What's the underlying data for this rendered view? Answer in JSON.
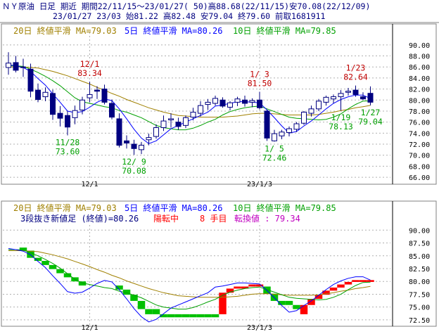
{
  "header": {
    "line1": "ＮＹ原油 日足 期近 期間22/11/15～23/01/27( 50)高88.68(22/11/15)安70.08(22/12/09)",
    "line2": "23/01/27 23/03 始81.22 高82.48 安79.04 終79.60 前取1681911"
  },
  "colors": {
    "up": "#ffffff",
    "down": "#000080",
    "ma20": "#a08000",
    "ma5": "#0000ff",
    "ma10": "#00a000",
    "annotation_high": "#c00000",
    "annotation_low": "#00a000",
    "break_up": "#ff0000",
    "break_down": "#00c000"
  },
  "chart_data": [
    {
      "type": "candlestick",
      "title": "ＮＹ原油 日足 期近",
      "legend": [
        {
          "label": "20日 終値平滑 MA=79.03",
          "color": "#a08000"
        },
        {
          "label": "5日 終値平滑 MA=80.26",
          "color": "#0000ff"
        },
        {
          "label": "10日 終値平滑 MA=79.85",
          "color": "#00a000"
        }
      ],
      "x_ticks": [
        {
          "index": 11,
          "label": "12/1"
        },
        {
          "index": 34,
          "label": "23/1/3"
        }
      ],
      "y_ticks": [
        66,
        68,
        70,
        72,
        74,
        76,
        78,
        80,
        82,
        84,
        86,
        88,
        90
      ],
      "ylim": [
        65.5,
        91
      ],
      "grid": true,
      "annotations": [
        {
          "index": 11,
          "date": "12/1",
          "value": "83.34",
          "kind": "high"
        },
        {
          "index": 8,
          "date": "11/28",
          "value": "73.60",
          "kind": "low"
        },
        {
          "index": 17,
          "date": "12/ 9",
          "value": "70.08",
          "kind": "low"
        },
        {
          "index": 34,
          "date": "1/ 3",
          "value": "81.50",
          "kind": "high"
        },
        {
          "index": 36,
          "date": "1/ 5",
          "value": "72.46",
          "kind": "low"
        },
        {
          "index": 45,
          "date": "1/19",
          "value": "78.13",
          "kind": "low"
        },
        {
          "index": 47,
          "date": "1/23",
          "value": "82.64",
          "kind": "high"
        },
        {
          "index": 49,
          "date": "1/27",
          "value": "79.04",
          "kind": "low"
        }
      ],
      "candles": [
        [
          85.9,
          88.68,
          84.6,
          86.7
        ],
        [
          86.8,
          88.0,
          85.0,
          85.4
        ],
        [
          86.0,
          87.5,
          84.2,
          85.9
        ],
        [
          85.6,
          86.6,
          80.5,
          81.6
        ],
        [
          81.8,
          83.0,
          79.6,
          80.1
        ],
        [
          80.6,
          82.3,
          79.8,
          81.4
        ],
        [
          81.2,
          81.9,
          76.4,
          77.4
        ],
        [
          77.6,
          78.9,
          75.2,
          76.7
        ],
        [
          77.2,
          78.0,
          73.6,
          75.1
        ],
        [
          76.8,
          79.0,
          75.6,
          78.1
        ],
        [
          78.2,
          80.6,
          77.4,
          80.0
        ],
        [
          80.4,
          83.34,
          79.6,
          81.0
        ],
        [
          81.8,
          82.5,
          80.2,
          81.6
        ],
        [
          82.0,
          82.8,
          79.2,
          79.6
        ],
        [
          79.4,
          80.1,
          76.5,
          76.9
        ],
        [
          76.6,
          77.6,
          71.4,
          71.8
        ],
        [
          72.6,
          73.6,
          71.2,
          72.2
        ],
        [
          72.0,
          72.8,
          70.08,
          71.2
        ],
        [
          71.0,
          72.4,
          70.2,
          71.8
        ],
        [
          72.8,
          73.9,
          71.8,
          73.2
        ],
        [
          73.4,
          75.6,
          73.0,
          75.0
        ],
        [
          75.0,
          77.2,
          74.4,
          76.2
        ],
        [
          76.4,
          77.6,
          75.0,
          76.6
        ],
        [
          76.0,
          76.8,
          74.6,
          75.2
        ],
        [
          75.4,
          77.2,
          74.9,
          76.8
        ],
        [
          76.9,
          78.6,
          76.3,
          77.8
        ],
        [
          77.6,
          79.8,
          77.0,
          79.0
        ],
        [
          79.2,
          80.2,
          78.2,
          79.6
        ],
        [
          79.4,
          80.8,
          79.0,
          80.3
        ],
        [
          80.0,
          80.5,
          78.6,
          78.9
        ],
        [
          78.7,
          79.8,
          78.1,
          79.5
        ],
        [
          79.6,
          80.6,
          78.9,
          80.2
        ],
        [
          80.0,
          80.8,
          78.8,
          79.4
        ],
        [
          79.6,
          80.3,
          78.7,
          79.9
        ],
        [
          80.0,
          81.5,
          78.3,
          78.6
        ],
        [
          78.0,
          78.2,
          72.6,
          73.1
        ],
        [
          72.6,
          74.6,
          72.46,
          73.9
        ],
        [
          73.5,
          74.6,
          72.9,
          74.2
        ],
        [
          74.1,
          75.2,
          73.4,
          74.8
        ],
        [
          74.7,
          76.0,
          74.2,
          75.7
        ],
        [
          75.8,
          78.0,
          75.5,
          77.8
        ],
        [
          77.6,
          79.0,
          77.0,
          78.4
        ],
        [
          78.4,
          80.2,
          78.0,
          79.8
        ],
        [
          79.6,
          80.8,
          79.0,
          80.5
        ],
        [
          80.2,
          81.0,
          79.4,
          80.6
        ],
        [
          80.6,
          81.8,
          78.13,
          81.2
        ],
        [
          81.4,
          82.2,
          80.8,
          81.6
        ],
        [
          81.8,
          82.64,
          80.6,
          81.0
        ],
        [
          80.6,
          81.4,
          80.0,
          80.2
        ],
        [
          81.22,
          82.48,
          79.04,
          79.6
        ]
      ],
      "ma5": [
        86.4,
        86.2,
        85.9,
        85.2,
        83.9,
        82.7,
        81.1,
        79.6,
        78.0,
        77.7,
        77.9,
        78.7,
        79.6,
        80.2,
        79.9,
        78.4,
        76.6,
        74.7,
        73.1,
        72.1,
        72.6,
        73.7,
        74.8,
        75.4,
        76.0,
        76.6,
        77.2,
        77.8,
        78.9,
        79.1,
        79.4,
        79.7,
        79.7,
        79.6,
        79.5,
        78.2,
        76.8,
        75.3,
        74.0,
        74.3,
        75.3,
        76.2,
        77.3,
        78.4,
        79.4,
        80.1,
        80.6,
        80.9,
        80.9,
        80.26
      ],
      "ma10": [
        86.2,
        86.2,
        86.1,
        85.6,
        85.0,
        84.3,
        83.5,
        82.6,
        81.5,
        80.4,
        79.7,
        79.4,
        79.1,
        78.8,
        78.6,
        78.1,
        77.8,
        77.3,
        76.8,
        76.1,
        75.4,
        75.0,
        74.8,
        74.6,
        74.6,
        74.9,
        75.4,
        76.0,
        76.5,
        77.3,
        77.9,
        78.3,
        78.6,
        78.8,
        78.9,
        78.4,
        77.9,
        77.4,
        76.9,
        76.7,
        76.6,
        76.5,
        76.4,
        76.5,
        76.9,
        77.5,
        78.4,
        79.2,
        79.8,
        79.85
      ],
      "ma20": [
        86.0,
        86.0,
        86.0,
        85.9,
        85.8,
        85.5,
        85.2,
        84.8,
        84.4,
        83.9,
        83.4,
        82.9,
        82.3,
        81.8,
        81.2,
        80.7,
        80.1,
        79.6,
        79.1,
        78.6,
        78.2,
        77.8,
        77.5,
        77.2,
        77.1,
        77.0,
        76.9,
        76.9,
        76.9,
        76.9,
        77.0,
        77.1,
        77.3,
        77.5,
        77.6,
        77.6,
        77.5,
        77.4,
        77.3,
        77.3,
        77.3,
        77.3,
        77.4,
        77.6,
        77.8,
        78.1,
        78.3,
        78.6,
        78.8,
        79.03
      ]
    },
    {
      "type": "three-line-break",
      "legend": [
        {
          "label": "20日 終値平滑 MA=79.03",
          "color": "#a08000"
        },
        {
          "label": "5日 終値平滑 MA=80.26",
          "color": "#0000ff"
        },
        {
          "label": "10日 終値平滑 MA=79.85",
          "color": "#00a000"
        }
      ],
      "subtitle_parts": [
        {
          "text": "3段抜き新値足 (終値)=80.26",
          "color": "#000080"
        },
        {
          "text": "陽転中",
          "color": "#ff0000"
        },
        {
          "text": "8 手目",
          "color": "#ff0000"
        },
        {
          "text": "転換値 : 79.34",
          "color": "#c000c0"
        }
      ],
      "x_ticks": [
        {
          "index": 11,
          "label": "12/1"
        },
        {
          "index": 34,
          "label": "23/1/3"
        }
      ],
      "y_ticks": [
        72.5,
        75.0,
        77.5,
        80.0,
        82.5,
        85.0,
        87.5,
        90.0
      ],
      "ylim": [
        71.8,
        91
      ],
      "grid": true,
      "bricks": [
        {
          "i": 2,
          "lo": 86.0,
          "hi": 86.6,
          "dir": "down"
        },
        {
          "i": 3,
          "lo": 84.6,
          "hi": 86.0,
          "dir": "down"
        },
        {
          "i": 4,
          "lo": 84.0,
          "hi": 84.6,
          "dir": "down"
        },
        {
          "i": 5,
          "lo": 83.2,
          "hi": 84.0,
          "dir": "down"
        },
        {
          "i": 6,
          "lo": 82.4,
          "hi": 83.2,
          "dir": "down"
        },
        {
          "i": 7,
          "lo": 81.6,
          "hi": 82.4,
          "dir": "down"
        },
        {
          "i": 8,
          "lo": 80.8,
          "hi": 81.6,
          "dir": "down"
        },
        {
          "i": 9,
          "lo": 80.0,
          "hi": 80.8,
          "dir": "down"
        },
        {
          "i": 10,
          "lo": 79.2,
          "hi": 80.0,
          "dir": "down"
        },
        {
          "i": 15,
          "lo": 78.4,
          "hi": 79.2,
          "dir": "down"
        },
        {
          "i": 16,
          "lo": 77.4,
          "hi": 78.4,
          "dir": "down"
        },
        {
          "i": 17,
          "lo": 76.2,
          "hi": 77.4,
          "dir": "down"
        },
        {
          "i": 18,
          "lo": 74.6,
          "hi": 76.2,
          "dir": "down"
        },
        {
          "i": 19,
          "lo": 73.6,
          "hi": 74.6,
          "dir": "down"
        },
        {
          "i": 20,
          "lo": 73.6,
          "hi": 74.6,
          "dir": "down"
        },
        {
          "i": 21,
          "lo": 73.0,
          "hi": 73.6,
          "dir": "down"
        },
        {
          "i": 22,
          "lo": 73.0,
          "hi": 73.6,
          "dir": "down"
        },
        {
          "i": 23,
          "lo": 73.0,
          "hi": 73.6,
          "dir": "down"
        },
        {
          "i": 24,
          "lo": 73.0,
          "hi": 73.6,
          "dir": "down"
        },
        {
          "i": 25,
          "lo": 73.0,
          "hi": 73.6,
          "dir": "down"
        },
        {
          "i": 26,
          "lo": 73.0,
          "hi": 73.6,
          "dir": "down"
        },
        {
          "i": 27,
          "lo": 73.0,
          "hi": 73.6,
          "dir": "down"
        },
        {
          "i": 28,
          "lo": 73.0,
          "hi": 73.6,
          "dir": "down"
        },
        {
          "i": 29,
          "lo": 73.6,
          "hi": 77.8,
          "dir": "up"
        },
        {
          "i": 30,
          "lo": 77.8,
          "hi": 78.6,
          "dir": "up"
        },
        {
          "i": 31,
          "lo": 78.6,
          "hi": 79.0,
          "dir": "up"
        },
        {
          "i": 32,
          "lo": 78.6,
          "hi": 79.0,
          "dir": "up"
        },
        {
          "i": 33,
          "lo": 79.0,
          "hi": 79.4,
          "dir": "up"
        },
        {
          "i": 34,
          "lo": 79.0,
          "hi": 79.4,
          "dir": "up"
        },
        {
          "i": 35,
          "lo": 77.6,
          "hi": 79.0,
          "dir": "down"
        },
        {
          "i": 36,
          "lo": 76.2,
          "hi": 77.6,
          "dir": "down"
        },
        {
          "i": 37,
          "lo": 75.4,
          "hi": 76.2,
          "dir": "down"
        },
        {
          "i": 38,
          "lo": 75.4,
          "hi": 76.2,
          "dir": "down"
        },
        {
          "i": 39,
          "lo": 74.6,
          "hi": 75.4,
          "dir": "down"
        },
        {
          "i": 40,
          "lo": 73.6,
          "hi": 75.4,
          "dir": "up"
        },
        {
          "i": 41,
          "lo": 75.4,
          "hi": 76.6,
          "dir": "up"
        },
        {
          "i": 42,
          "lo": 76.6,
          "hi": 77.4,
          "dir": "up"
        },
        {
          "i": 43,
          "lo": 77.4,
          "hi": 78.2,
          "dir": "up"
        },
        {
          "i": 44,
          "lo": 78.2,
          "hi": 78.8,
          "dir": "up"
        },
        {
          "i": 45,
          "lo": 78.8,
          "hi": 79.4,
          "dir": "up"
        },
        {
          "i": 46,
          "lo": 79.4,
          "hi": 79.9,
          "dir": "up"
        },
        {
          "i": 47,
          "lo": 79.9,
          "hi": 80.26,
          "dir": "up"
        },
        {
          "i": 48,
          "lo": 79.9,
          "hi": 80.26,
          "dir": "up"
        },
        {
          "i": 49,
          "lo": 79.9,
          "hi": 80.26,
          "dir": "up"
        }
      ]
    }
  ]
}
